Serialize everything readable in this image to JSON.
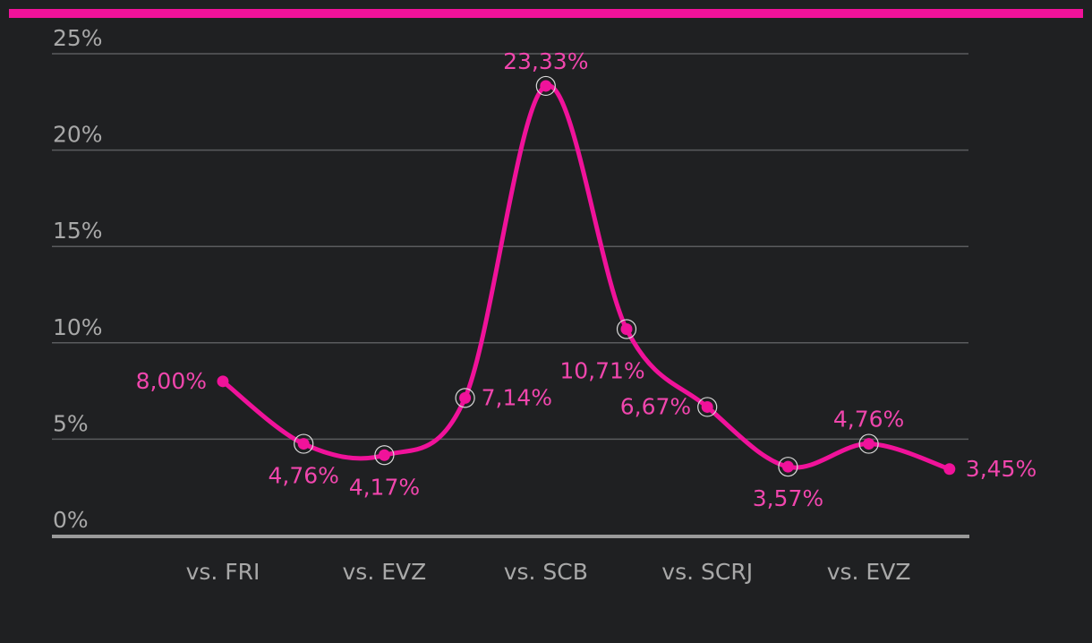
{
  "colors": {
    "background": "#1f2022",
    "accent": "#f0129a",
    "label": "#f046ad",
    "grid": "#5a5b5e",
    "axis": "#9a9a9a",
    "tick_text": "#a8a8a8"
  },
  "chart_data": {
    "type": "line",
    "title": "",
    "xlabel": "",
    "ylabel": "",
    "ylim": [
      0,
      25
    ],
    "yticks": [
      0,
      5,
      10,
      15,
      20,
      25
    ],
    "ytick_labels": [
      "0%",
      "5%",
      "10%",
      "15%",
      "20%",
      "25%"
    ],
    "grid": true,
    "values": [
      8.0,
      4.76,
      4.17,
      7.14,
      23.33,
      10.71,
      6.67,
      3.57,
      4.76,
      3.45
    ],
    "value_labels": [
      "8,00%",
      "4,76%",
      "4,17%",
      "7,14%",
      "23,33%",
      "10,71%",
      "6,67%",
      "3,57%",
      "4,76%",
      "3,45%"
    ],
    "categories": [
      "vs. FRI",
      "",
      "vs. EVZ",
      "",
      "vs. SCB",
      "",
      "vs. SCRJ",
      "",
      "vs. EVZ",
      ""
    ],
    "visible_x_labels": [
      "vs. FRI",
      "vs. EVZ",
      "vs. SCB",
      "vs. SCRJ",
      "vs. EVZ"
    ]
  }
}
